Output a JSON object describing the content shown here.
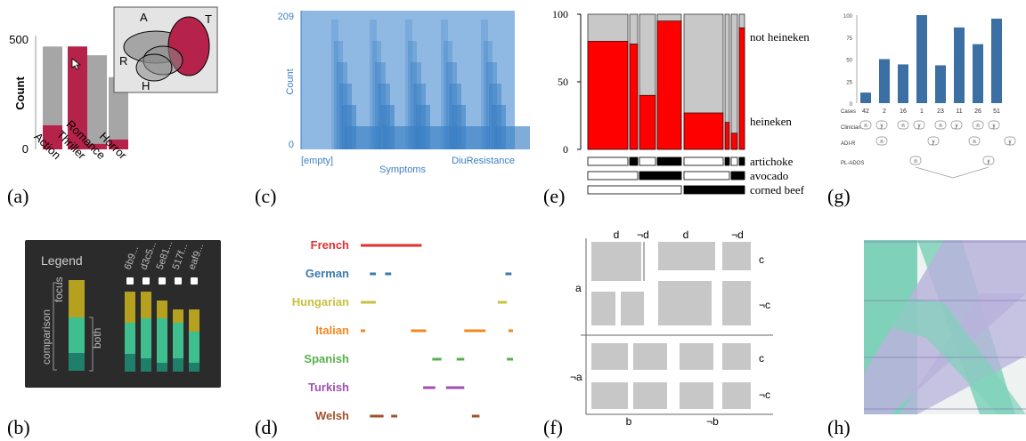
{
  "panel_labels": [
    "(a)",
    "(b)",
    "(c)",
    "(d)",
    "(e)",
    "(f)",
    "(g)",
    "(h)"
  ],
  "colors": {
    "crimson": "#b5234a",
    "gray": "#a6a6a6",
    "blue": "#3a7fc4",
    "lightblue": "#8fb9e3",
    "red": "#ff0000",
    "steel": "#3c6fa3",
    "teal": "#7fd1b9",
    "lavender": "#b8b3dc",
    "olive": "#b5a020",
    "green": "#3fbf8f"
  },
  "chart_data": [
    {
      "type": "bar",
      "panel": "(a)",
      "ylabel": "Count",
      "yticks": [
        "0",
        "500"
      ],
      "categories": [
        "Action",
        "Thriller",
        "Romance",
        "Horror"
      ],
      "series": [
        {
          "values": [
            470,
            470,
            430,
            330
          ]
        },
        {
          "values": [
            110,
            470,
            25,
            45
          ]
        }
      ],
      "ylim": [
        0,
        520
      ],
      "venn_labels": [
        "A",
        "T",
        "R",
        "H"
      ]
    },
    {
      "type": "bar",
      "panel": "(b)",
      "legend_title": "Legend",
      "legend_labels": [
        "focus",
        "both",
        "comparison"
      ],
      "categories": [
        "6b9...",
        "d3c5...",
        "5e81...",
        "517f...",
        "eaf9..."
      ],
      "series": [
        {
          "values": [
            0.35,
            0.3,
            0.2,
            0.15,
            0.25
          ]
        },
        {
          "values": [
            0.35,
            0.45,
            0.5,
            0.4,
            0.35
          ]
        },
        {
          "values": [
            0.2,
            0.15,
            0.1,
            0.15,
            0.1
          ]
        }
      ]
    },
    {
      "type": "area",
      "panel": "(c)",
      "ylabel": "Count",
      "xlabel": "Symptoms",
      "yticks": [
        "209",
        "0"
      ],
      "xticks": [
        "[empty]",
        "DiuResistance"
      ]
    },
    {
      "type": "line",
      "panel": "(d)",
      "series": [
        {
          "name": "French",
          "segments": [
            [
              0.0,
              0.4
            ]
          ]
        },
        {
          "name": "German",
          "segments": [
            [
              0.06,
              0.1
            ],
            [
              0.16,
              0.2
            ],
            [
              0.95,
              0.99
            ]
          ]
        },
        {
          "name": "Hungarian",
          "segments": [
            [
              0.0,
              0.1
            ],
            [
              0.9,
              0.96
            ]
          ]
        },
        {
          "name": "Italian",
          "segments": [
            [
              0.0,
              0.03
            ],
            [
              0.33,
              0.43
            ],
            [
              0.68,
              0.82
            ],
            [
              0.97,
              1.0
            ]
          ]
        },
        {
          "name": "Spanish",
          "segments": [
            [
              0.47,
              0.53
            ],
            [
              0.63,
              0.68
            ],
            [
              0.96,
              1.0
            ]
          ]
        },
        {
          "name": "Turkish",
          "segments": [
            [
              0.41,
              0.49
            ],
            [
              0.56,
              0.68
            ]
          ]
        },
        {
          "name": "Welsh",
          "segments": [
            [
              0.06,
              0.15
            ],
            [
              0.2,
              0.24
            ],
            [
              0.73,
              0.78
            ]
          ]
        }
      ]
    },
    {
      "type": "bar",
      "panel": "(e)",
      "yticks": [
        "100",
        "50",
        "0"
      ],
      "ylim": [
        0,
        100
      ],
      "series_labels": [
        "not heineken",
        "heineken"
      ],
      "row_labels": [
        "artichoke",
        "avocado",
        "corned beef"
      ],
      "values": [
        80,
        78,
        40,
        95,
        27,
        20,
        12,
        90
      ]
    },
    {
      "type": "table",
      "panel": "(f)",
      "top_labels": [
        "d",
        "¬d",
        "d",
        "¬d"
      ],
      "right_labels": [
        "c",
        "¬c",
        "c",
        "¬c"
      ],
      "left_labels": [
        "a",
        "¬a"
      ],
      "bottom_labels": [
        "b",
        "¬b"
      ]
    },
    {
      "type": "bar",
      "panel": "(g)",
      "ylim": [
        0,
        100
      ],
      "yticks": [
        "100",
        "75",
        "50",
        "25",
        "0"
      ],
      "categories": [
        "42",
        "2",
        "16",
        "1",
        "23",
        "11",
        "26",
        "51"
      ],
      "values": [
        12,
        50,
        44,
        100,
        43,
        86,
        67,
        96
      ],
      "row_labels": [
        "Cases",
        "Clinician",
        "ADI-R",
        "PL-ADOS"
      ],
      "node_labels": [
        "n",
        "y",
        "n",
        "y",
        "n",
        "y",
        "n",
        "y",
        "n",
        "y",
        "n",
        "y",
        "n",
        "y"
      ]
    },
    {
      "type": "area",
      "panel": "(h)"
    }
  ]
}
